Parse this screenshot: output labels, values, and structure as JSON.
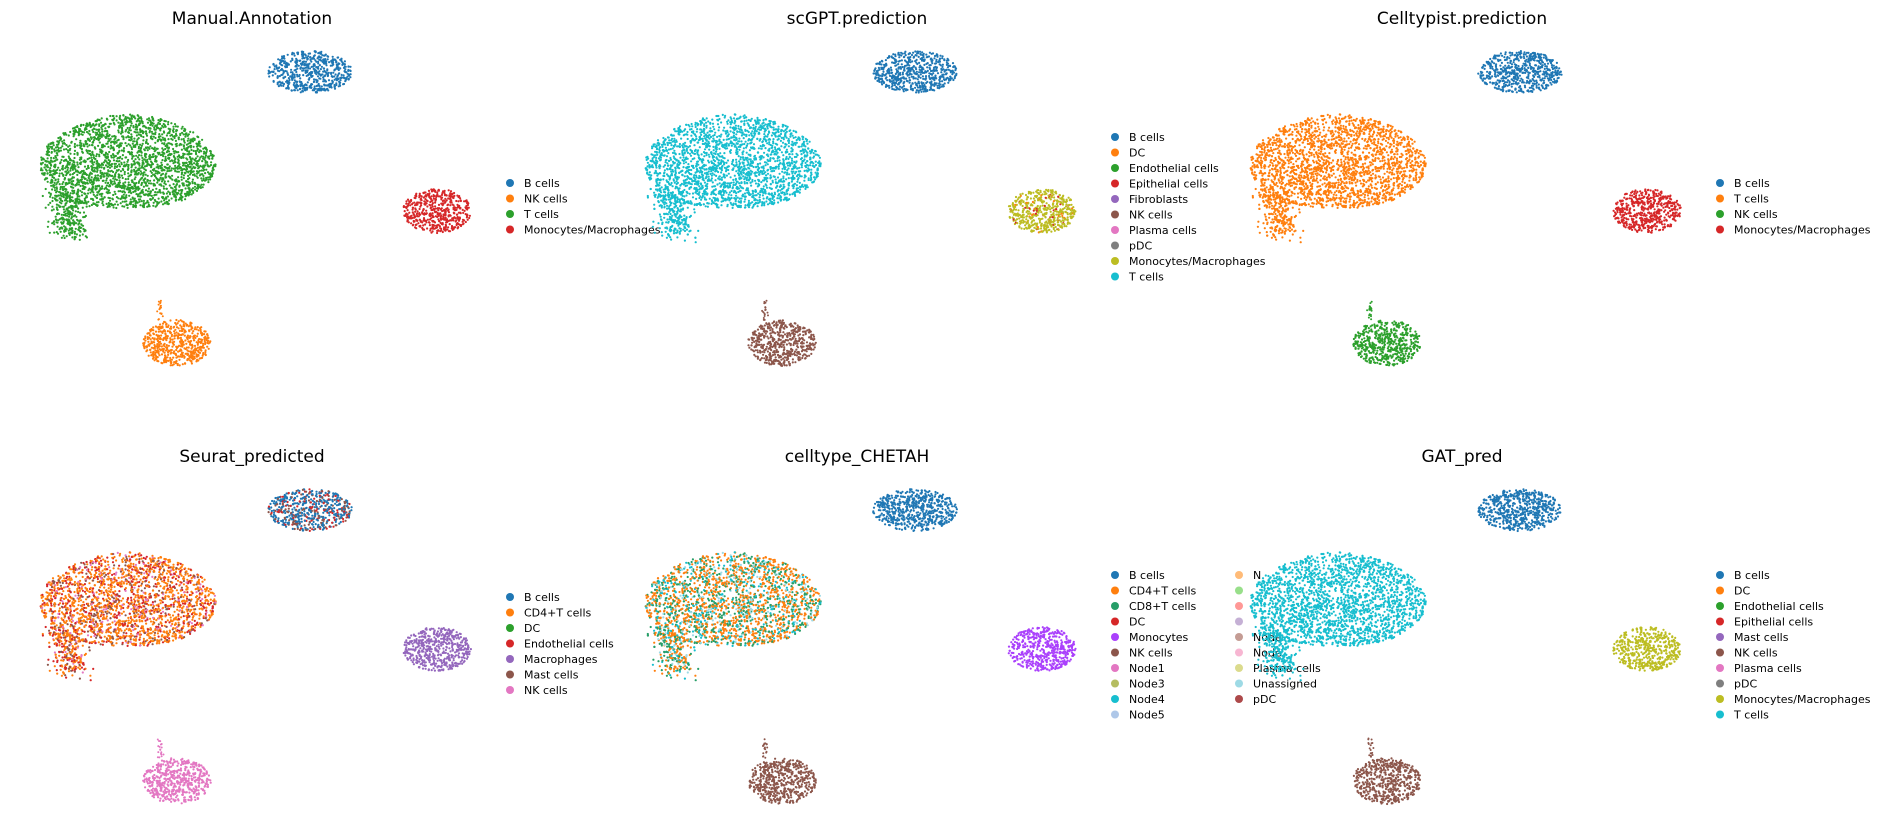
{
  "chart_data": [
    {
      "type": "scatter",
      "title": "Manual.Annotation",
      "legend": [
        {
          "label": "B cells",
          "color": "#1f77b4"
        },
        {
          "label": "NK cells",
          "color": "#ff7f0e"
        },
        {
          "label": "T cells",
          "color": "#2ca02c"
        },
        {
          "label": "Monocytes/Macrophages",
          "color": "#d62728"
        }
      ],
      "legend_columns": 1,
      "clusters": {
        "tcell": [
          {
            "label": "T cells",
            "w": 1
          }
        ],
        "bcell": [
          {
            "label": "B cells",
            "w": 1
          }
        ],
        "myeloid": [
          {
            "label": "Monocytes/Macrophages",
            "w": 1
          }
        ],
        "nk": [
          {
            "label": "NK cells",
            "w": 1
          }
        ]
      }
    },
    {
      "type": "scatter",
      "title": "scGPT.prediction",
      "legend": [
        {
          "label": "B cells",
          "color": "#1f77b4"
        },
        {
          "label": "DC",
          "color": "#ff7f0e"
        },
        {
          "label": "Endothelial cells",
          "color": "#2ca02c"
        },
        {
          "label": "Epithelial cells",
          "color": "#d62728"
        },
        {
          "label": "Fibroblasts",
          "color": "#9467bd"
        },
        {
          "label": "NK cells",
          "color": "#8c564b"
        },
        {
          "label": "Plasma cells",
          "color": "#e377c2"
        },
        {
          "label": "pDC",
          "color": "#7f7f7f"
        },
        {
          "label": "Monocytes/Macrophages",
          "color": "#bcbd22"
        },
        {
          "label": "T cells",
          "color": "#17becf"
        }
      ],
      "legend_columns": 1,
      "clusters": {
        "tcell": [
          {
            "label": "T cells",
            "w": 1
          }
        ],
        "bcell": [
          {
            "label": "B cells",
            "w": 1
          }
        ],
        "myeloid": [
          {
            "label": "Monocytes/Macrophages",
            "w": 0.9
          },
          {
            "label": "Epithelial cells",
            "w": 0.05
          },
          {
            "label": "DC",
            "w": 0.05
          }
        ],
        "nk": [
          {
            "label": "NK cells",
            "w": 1
          }
        ]
      }
    },
    {
      "type": "scatter",
      "title": "Celltypist.prediction",
      "legend": [
        {
          "label": "B cells",
          "color": "#1f77b4"
        },
        {
          "label": "T cells",
          "color": "#ff7f0e"
        },
        {
          "label": "NK cells",
          "color": "#2ca02c"
        },
        {
          "label": "Monocytes/Macrophages",
          "color": "#d62728"
        }
      ],
      "legend_columns": 1,
      "clusters": {
        "tcell": [
          {
            "label": "T cells",
            "w": 1
          }
        ],
        "bcell": [
          {
            "label": "B cells",
            "w": 1
          }
        ],
        "myeloid": [
          {
            "label": "Monocytes/Macrophages",
            "w": 1
          }
        ],
        "nk": [
          {
            "label": "NK cells",
            "w": 1
          }
        ]
      }
    },
    {
      "type": "scatter",
      "title": "Seurat_predicted",
      "legend": [
        {
          "label": "B cells",
          "color": "#1f77b4"
        },
        {
          "label": "CD4+T cells",
          "color": "#ff7f0e"
        },
        {
          "label": "DC",
          "color": "#2ca02c"
        },
        {
          "label": "Endothelial cells",
          "color": "#d62728"
        },
        {
          "label": "Macrophages",
          "color": "#9467bd"
        },
        {
          "label": "Mast cells",
          "color": "#8c564b"
        },
        {
          "label": "NK cells",
          "color": "#e377c2"
        }
      ],
      "legend_columns": 1,
      "clusters": {
        "tcell": [
          {
            "label": "CD4+T cells",
            "w": 0.55
          },
          {
            "label": "Endothelial cells",
            "w": 0.25
          },
          {
            "label": "Mast cells",
            "w": 0.12
          },
          {
            "label": "NK cells",
            "w": 0.08
          }
        ],
        "bcell": [
          {
            "label": "B cells",
            "w": 0.6
          },
          {
            "label": "Endothelial cells",
            "w": 0.2
          },
          {
            "label": "Mast cells",
            "w": 0.2
          }
        ],
        "myeloid": [
          {
            "label": "Macrophages",
            "w": 1
          }
        ],
        "nk": [
          {
            "label": "NK cells",
            "w": 1
          }
        ]
      }
    },
    {
      "type": "scatter",
      "title": "celltype_CHETAH",
      "legend": [
        {
          "label": "B cells",
          "color": "#1f77b4"
        },
        {
          "label": "CD4+T cells",
          "color": "#ff7f0e"
        },
        {
          "label": "CD8+T cells",
          "color": "#279e68"
        },
        {
          "label": "DC",
          "color": "#d62728"
        },
        {
          "label": "Monocytes",
          "color": "#aa40fc"
        },
        {
          "label": "NK cells",
          "color": "#8c564b"
        },
        {
          "label": "Node1",
          "color": "#e377c2"
        },
        {
          "label": "Node3",
          "color": "#b5bd61"
        },
        {
          "label": "Node4",
          "color": "#17becf"
        },
        {
          "label": "Node5",
          "color": "#aec7e8"
        },
        {
          "label": "N",
          "color": "#ffbb78"
        },
        {
          "label": "",
          "color": "#98df8a"
        },
        {
          "label": "",
          "color": "#ff9896"
        },
        {
          "label": "",
          "color": "#c5b0d5"
        },
        {
          "label": "Node",
          "color": "#c49c94"
        },
        {
          "label": "Node",
          "color": "#f7b6d2"
        },
        {
          "label": "Plasma cells",
          "color": "#dbdb8d"
        },
        {
          "label": "Unassigned",
          "color": "#9edae5"
        },
        {
          "label": "pDC",
          "color": "#ad494a"
        }
      ],
      "legend_columns": 2,
      "clusters": {
        "tcell": [
          {
            "label": "CD4+T cells",
            "w": 0.45
          },
          {
            "label": "CD8+T cells",
            "w": 0.3
          },
          {
            "label": "Node4",
            "w": 0.15
          },
          {
            "label": "Unassigned",
            "w": 0.1
          }
        ],
        "bcell": [
          {
            "label": "B cells",
            "w": 1
          }
        ],
        "myeloid": [
          {
            "label": "Monocytes",
            "w": 1
          }
        ],
        "nk": [
          {
            "label": "NK cells",
            "w": 1
          }
        ]
      }
    },
    {
      "type": "scatter",
      "title": "GAT_pred",
      "legend": [
        {
          "label": "B cells",
          "color": "#1f77b4"
        },
        {
          "label": "DC",
          "color": "#ff7f0e"
        },
        {
          "label": "Endothelial cells",
          "color": "#2ca02c"
        },
        {
          "label": "Epithelial cells",
          "color": "#d62728"
        },
        {
          "label": "Mast cells",
          "color": "#9467bd"
        },
        {
          "label": "NK cells",
          "color": "#8c564b"
        },
        {
          "label": "Plasma cells",
          "color": "#e377c2"
        },
        {
          "label": "pDC",
          "color": "#7f7f7f"
        },
        {
          "label": "Monocytes/Macrophages",
          "color": "#bcbd22"
        },
        {
          "label": "T cells",
          "color": "#17becf"
        }
      ],
      "legend_columns": 1,
      "clusters": {
        "tcell": [
          {
            "label": "T cells",
            "w": 1
          }
        ],
        "bcell": [
          {
            "label": "B cells",
            "w": 1
          }
        ],
        "myeloid": [
          {
            "label": "Monocytes/Macrophages",
            "w": 1
          }
        ],
        "nk": [
          {
            "label": "NK cells",
            "w": 1
          }
        ]
      }
    }
  ]
}
